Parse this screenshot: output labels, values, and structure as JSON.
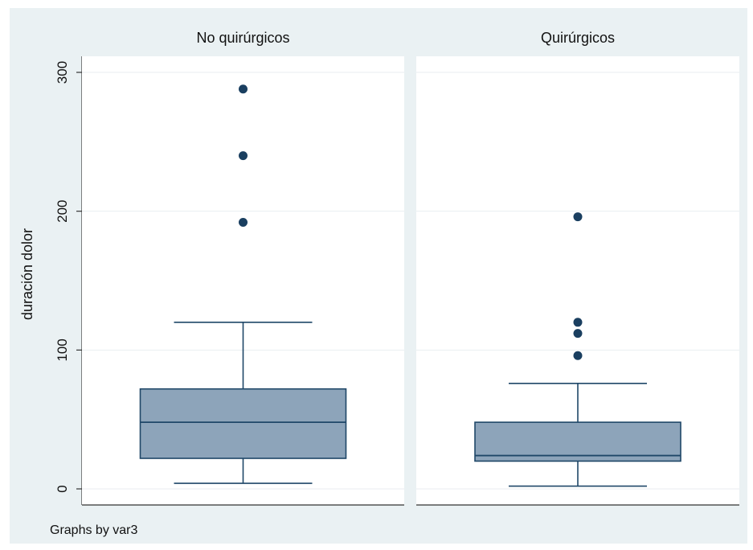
{
  "chart_data": {
    "type": "boxplot",
    "ylabel": "duración dolor",
    "note": "Graphs by var3",
    "y_ticks": [
      0,
      100,
      200,
      300
    ],
    "ylim": [
      -12,
      311
    ],
    "grid": true,
    "colors": {
      "box": "#8da4ba",
      "line": "#1f4768",
      "dot": "#1a3f60",
      "plot_bg": "#ffffff",
      "outer_bg": "#eaf1f3",
      "grid": "#e9eef1"
    },
    "panels": [
      {
        "title": "No quirúrgicos",
        "whisker_low": 4,
        "q1": 22,
        "median": 48,
        "q3": 72,
        "whisker_high": 120,
        "outliers": [
          192,
          240,
          288
        ]
      },
      {
        "title": "Quirúrgicos",
        "whisker_low": 2,
        "q1": 20,
        "median": 24,
        "q3": 48,
        "whisker_high": 76,
        "outliers": [
          96,
          112,
          120,
          196
        ]
      }
    ]
  }
}
